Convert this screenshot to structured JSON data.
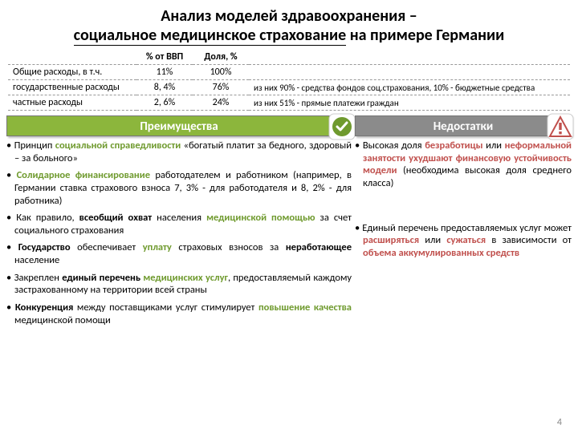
{
  "title_line1": "Анализ моделей здравоохранения –",
  "title_line2": "социальное медицинское страхование",
  "title_line2_tail": " на примере Германии",
  "table": {
    "h1": "",
    "h2": "% от ВВП",
    "h3": "Доля, %",
    "h4": "",
    "rows": [
      {
        "c1": "Общие расходы, в т.ч.",
        "c2": "11%",
        "c3": "100%",
        "c4": ""
      },
      {
        "c1": "государственные расходы",
        "c2": "8, 4%",
        "c3": "76%",
        "c4": "из них 90% - средства фондов соц.страхования, 10% - бюджетные средства"
      },
      {
        "c1": "частные расходы",
        "c2": "2, 6%",
        "c3": "24%",
        "c4": "из них 51% - прямые платежи граждан"
      }
    ]
  },
  "adv_title": "Преимущества",
  "dis_title": "Недостатки",
  "advantages": [
    "Принцип <span class='g'>социальной справедливости</span> «богатый платит за бедного, здоровый – за больного»",
    "<span class='g'>Солидарное финансирование</span> работодателем и работником (например, в Германии ставка страхового взноса 7, 3% - для работодателя и 8, 2% - для работника)",
    "Как правило, <span class='b'>всеобщий охват</span> населения <span class='g'>медицинской помощью</span> за счет социального страхования",
    "<span class='b'>Государство</span> обеспечивает <span class='g'>уплату</span> страховых взносов за <span class='b'>неработающее</span> население",
    "Закреплен <span class='b'>единый перечень</span> <span class='g'>медицинских услуг</span>, предоставляемый каждому застрахованному на территории всей страны",
    "<span class='b'>Конкуренция</span> между поставщиками услуг стимулирует <span class='g'>повышение качества</span> медицинской помощи"
  ],
  "disadvantages": [
    "Высокая доля <span class='r'>безработицы</span> или <span class='r'>неформальной занятости ухудшают финансовую устойчивость модели</span> (необходима высокая доля среднего класса)",
    "Единый перечень предоставляемых услуг может <span class='r'>расширяться</span> или <span class='r'>сужаться</span> в зависимости от <span class='r'>объема аккумулированных средств</span>"
  ],
  "pagenum": "4",
  "colors": {
    "green": "#8cb63c",
    "grey": "#8b8b8b",
    "red": "#c0504d",
    "text_green": "#6f9a2e"
  }
}
